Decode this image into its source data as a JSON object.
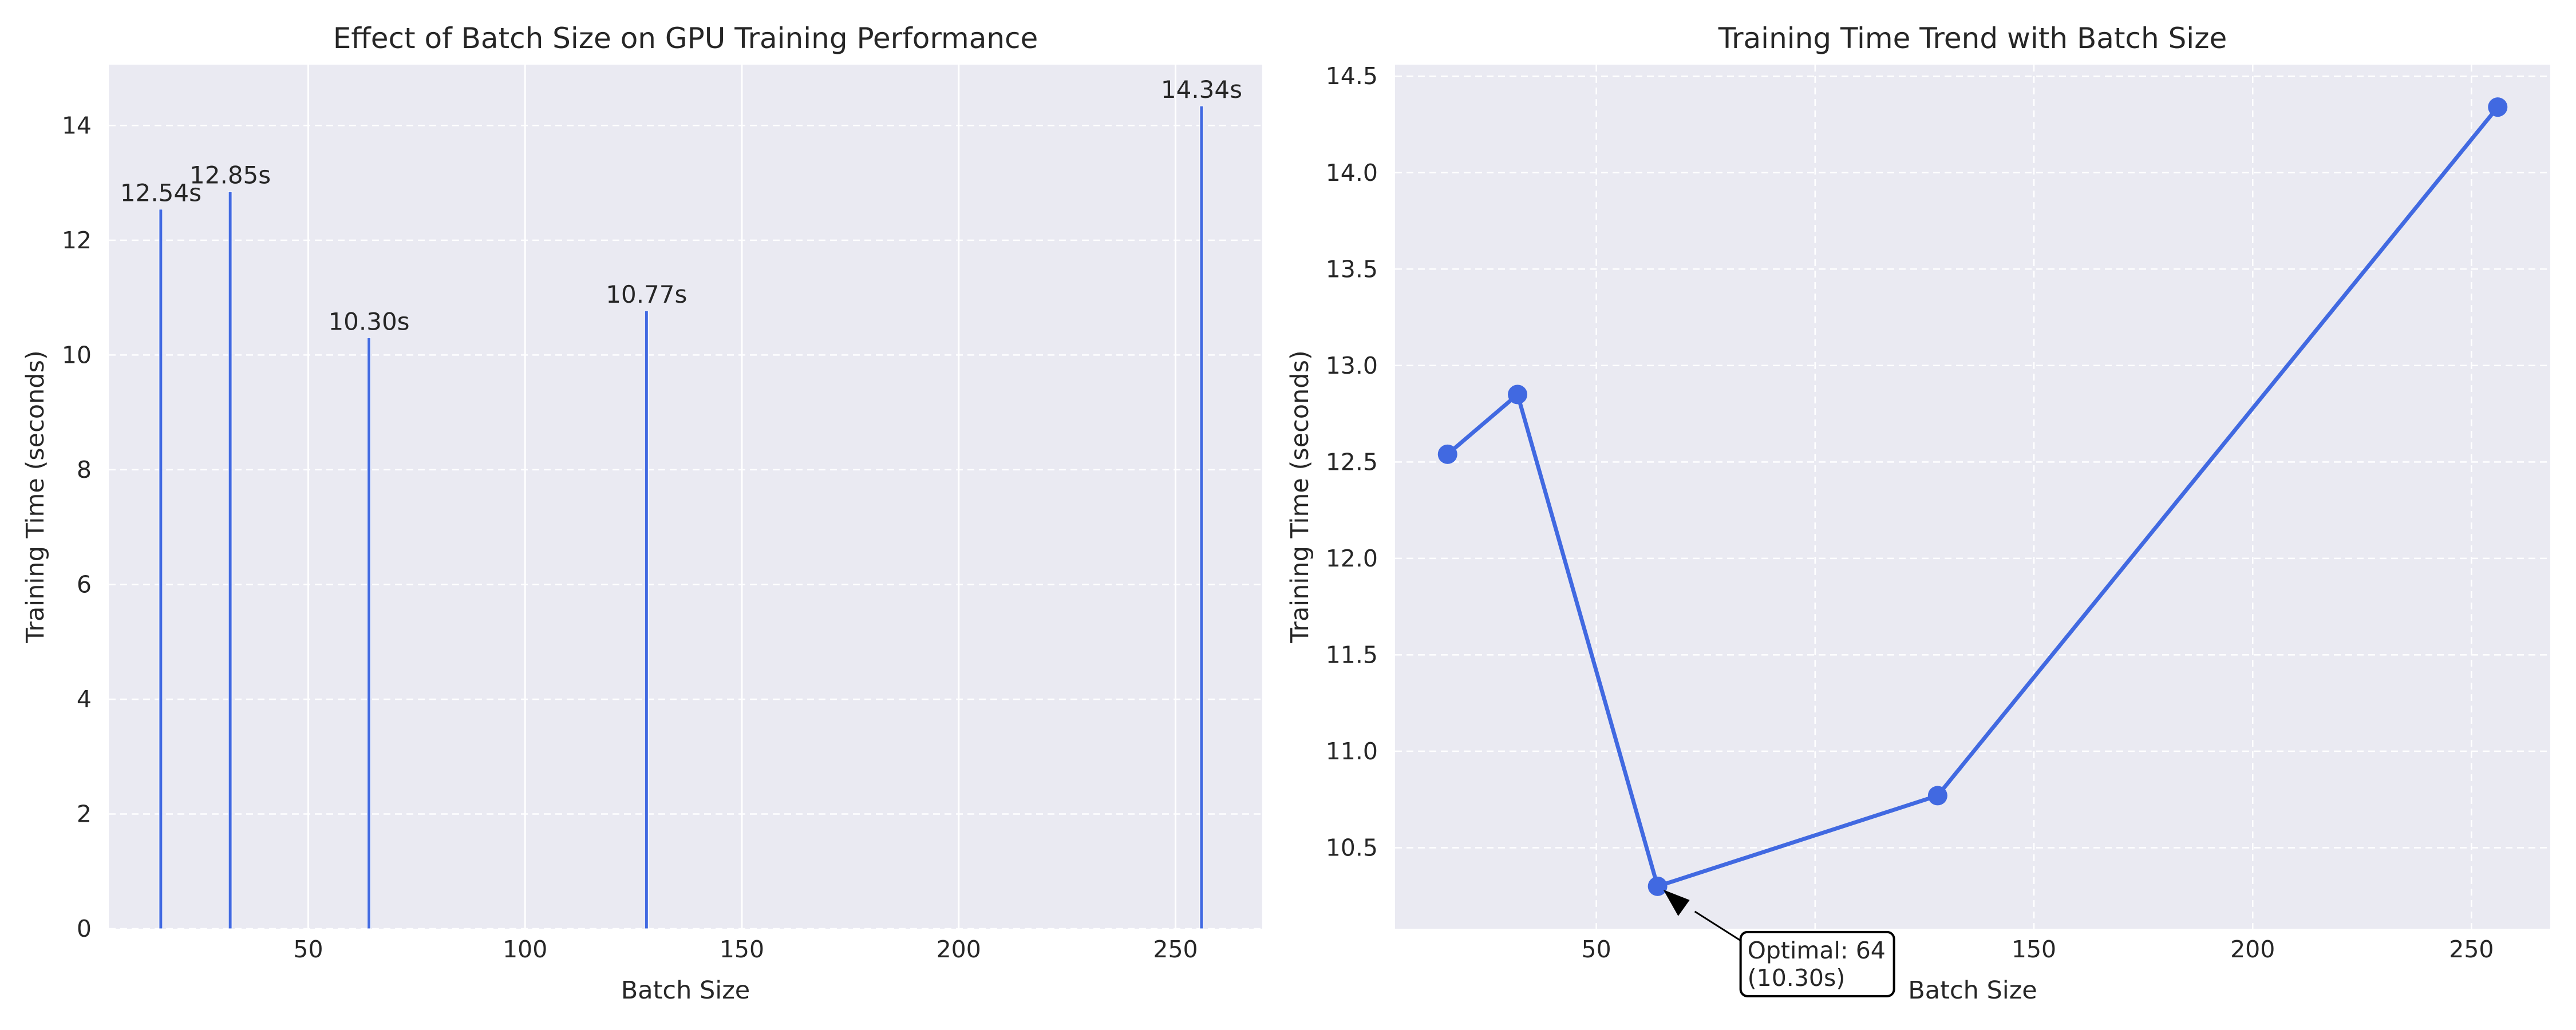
{
  "colors": {
    "background": "#ffffff",
    "plot_bg": "#eaeaf2",
    "grid": "#ffffff",
    "series": "#4169e1",
    "text": "#262626"
  },
  "chart_data": [
    {
      "type": "bar",
      "title": "Effect of Batch Size on GPU Training Performance",
      "xlabel": "Batch Size",
      "ylabel": "Training Time (seconds)",
      "x": [
        16,
        32,
        64,
        128,
        256
      ],
      "values": [
        12.54,
        12.85,
        10.3,
        10.77,
        14.34
      ],
      "data_labels": [
        "12.54s",
        "12.85s",
        "10.30s",
        "10.77s",
        "14.34s"
      ],
      "xlim": [
        4,
        270
      ],
      "ylim": [
        0,
        15.06
      ],
      "xticks": [
        50,
        100,
        150,
        200,
        250
      ],
      "yticks": [
        0,
        2,
        4,
        6,
        8,
        10,
        12,
        14
      ],
      "grid": true,
      "style": "seaborn-darkgrid"
    },
    {
      "type": "line",
      "title": "Training Time Trend with Batch Size",
      "xlabel": "Batch Size",
      "ylabel": "Training Time (seconds)",
      "x": [
        16,
        32,
        64,
        128,
        256
      ],
      "values": [
        12.54,
        12.85,
        10.3,
        10.77,
        14.34
      ],
      "markers": true,
      "xlim": [
        4,
        268
      ],
      "ylim": [
        10.08,
        14.56
      ],
      "xticks": [
        50,
        100,
        150,
        200,
        250
      ],
      "yticks": [
        10.5,
        11.0,
        11.5,
        12.0,
        12.5,
        13.0,
        13.5,
        14.0,
        14.5
      ],
      "ytick_labels": [
        "10.5",
        "11.0",
        "11.5",
        "12.0",
        "12.5",
        "13.0",
        "13.5",
        "14.0",
        "14.5"
      ],
      "grid": true,
      "grid_style": "dashed",
      "annotation": {
        "line1": "Optimal: 64",
        "line2": "(10.30s)",
        "target_x": 64,
        "target_y": 10.3
      }
    }
  ]
}
